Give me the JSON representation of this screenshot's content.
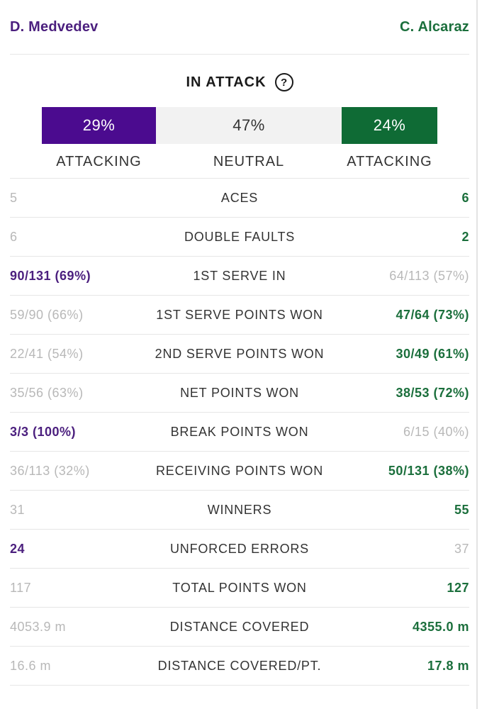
{
  "players": {
    "left": "D. Medvedev",
    "right": "C. Alcaraz"
  },
  "attack": {
    "title": "IN ATTACK",
    "help_glyph": "?",
    "left_pct": "29%",
    "neutral_pct": "47%",
    "right_pct": "24%",
    "left_label": "ATTACKING",
    "neutral_label": "NEUTRAL",
    "right_label": "ATTACKING"
  },
  "colors": {
    "player1": "#4b1f7e",
    "player2": "#1b6f3c",
    "bar_p1": "#4b0b8f",
    "bar_p2": "#0f6b35",
    "neutral": "#f2f2f2"
  },
  "stats": [
    {
      "label": "ACES",
      "left": "5",
      "right": "6",
      "leader": "right"
    },
    {
      "label": "DOUBLE FAULTS",
      "left": "6",
      "right": "2",
      "leader": "right"
    },
    {
      "label": "1ST SERVE IN",
      "left": "90/131 (69%)",
      "right": "64/113 (57%)",
      "leader": "left"
    },
    {
      "label": "1ST SERVE POINTS WON",
      "left": "59/90 (66%)",
      "right": "47/64 (73%)",
      "leader": "right"
    },
    {
      "label": "2ND SERVE POINTS WON",
      "left": "22/41 (54%)",
      "right": "30/49 (61%)",
      "leader": "right"
    },
    {
      "label": "NET POINTS WON",
      "left": "35/56 (63%)",
      "right": "38/53 (72%)",
      "leader": "right"
    },
    {
      "label": "BREAK POINTS WON",
      "left": "3/3 (100%)",
      "right": "6/15 (40%)",
      "leader": "left"
    },
    {
      "label": "RECEIVING POINTS WON",
      "left": "36/113 (32%)",
      "right": "50/131 (38%)",
      "leader": "right"
    },
    {
      "label": "WINNERS",
      "left": "31",
      "right": "55",
      "leader": "right"
    },
    {
      "label": "UNFORCED ERRORS",
      "left": "24",
      "right": "37",
      "leader": "left"
    },
    {
      "label": "TOTAL POINTS WON",
      "left": "117",
      "right": "127",
      "leader": "right"
    },
    {
      "label": "DISTANCE COVERED",
      "left": "4053.9 m",
      "right": "4355.0 m",
      "leader": "right"
    },
    {
      "label": "DISTANCE COVERED/PT.",
      "left": "16.6 m",
      "right": "17.8 m",
      "leader": "right"
    }
  ]
}
